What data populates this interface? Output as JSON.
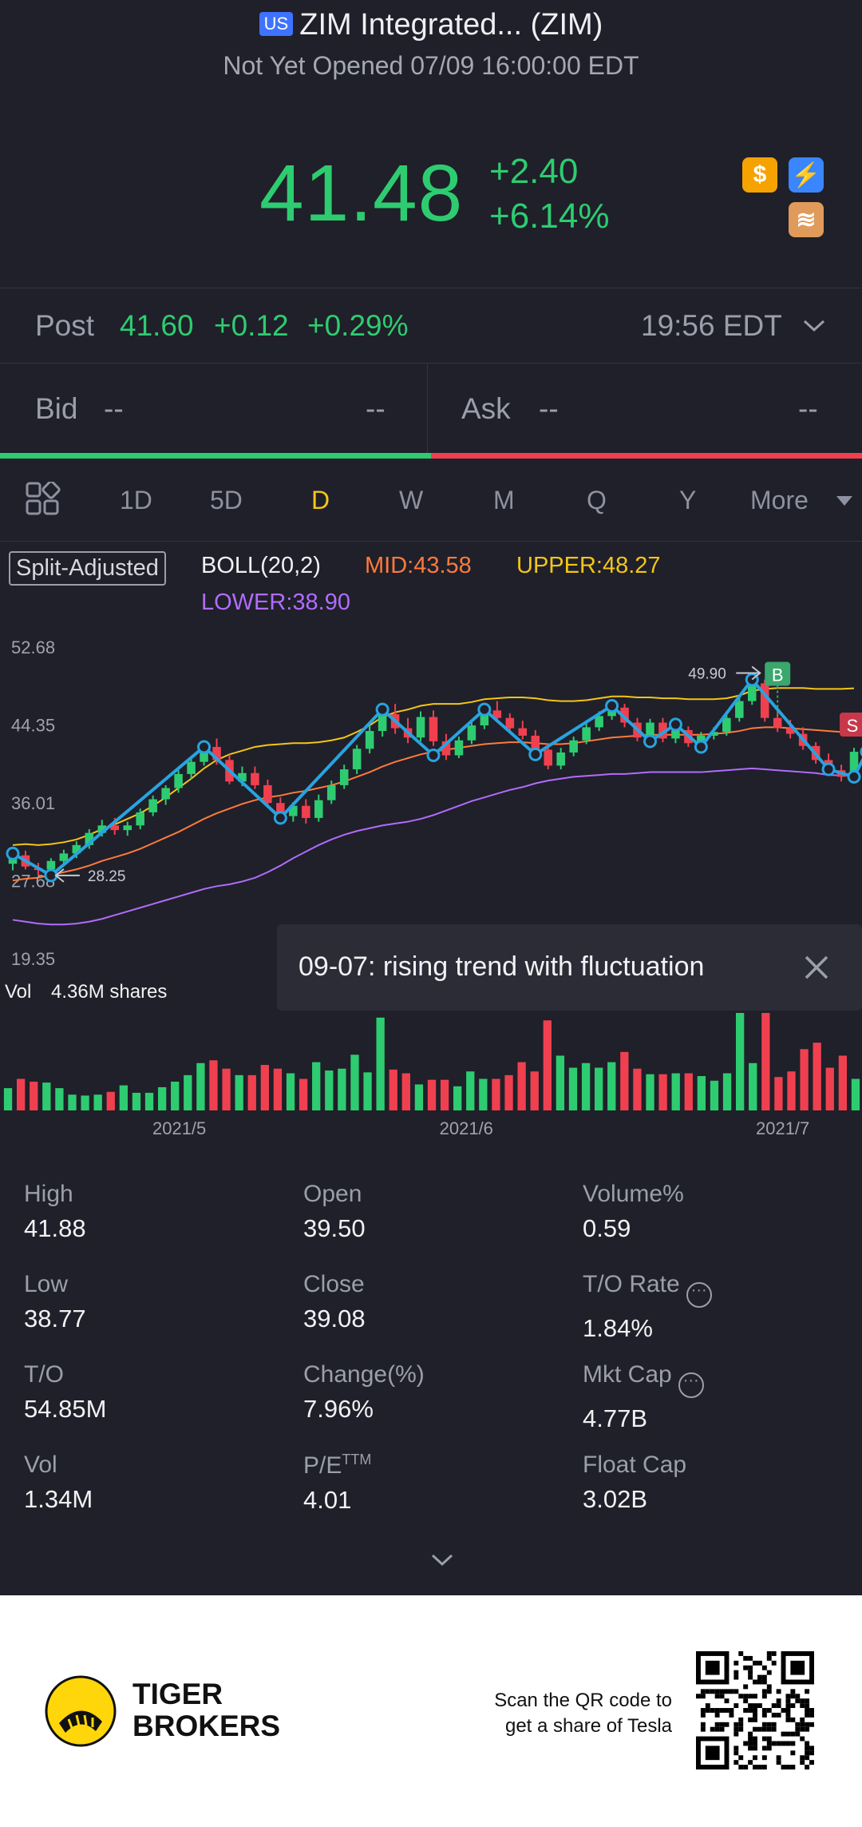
{
  "header": {
    "market_badge": "US",
    "title": "ZIM Integrated... (ZIM)",
    "status": "Not Yet Opened 07/09 16:00:00 EDT"
  },
  "quote": {
    "price": "41.48",
    "change": "+2.40",
    "change_pct": "+6.14%",
    "chips": [
      {
        "icon": "dollar-icon",
        "glyph": "$",
        "color": "#f6a300"
      },
      {
        "icon": "lightning-icon",
        "glyph": "⚡",
        "color": "#3a86ff"
      },
      {
        "icon": "stack-icon",
        "glyph": "≋",
        "color": "#e09a5a"
      }
    ]
  },
  "post": {
    "label": "Post",
    "price": "41.60",
    "change": "+0.12",
    "change_pct": "+0.29%",
    "time": "19:56 EDT"
  },
  "bid_ask": {
    "bid_label": "Bid",
    "bid_price": "--",
    "bid_size": "--",
    "ask_label": "Ask",
    "ask_price": "--",
    "ask_size": "--"
  },
  "tabs": [
    "1D",
    "5D",
    "D",
    "W",
    "M",
    "Q",
    "Y",
    "More"
  ],
  "active_tab": "D",
  "indicator": {
    "adjust_label": "Split-Adjusted",
    "name": "BOLL(20,2)",
    "mid": "MID:43.58",
    "upper": "UPPER:48.27",
    "lower": "LOWER:38.90",
    "colors": {
      "mid": "#ff7a3d",
      "upper": "#f5c518",
      "lower": "#b26bff"
    }
  },
  "annotation": {
    "high_label": "49.90",
    "low_label": "28.25",
    "trend_text": "09-07: rising trend with fluctuation",
    "buy_marker": "B",
    "sell_marker": "S"
  },
  "volume": {
    "label": "Vol",
    "value": "4.36M shares"
  },
  "chart_data": {
    "type": "candlestick",
    "y_ticks": [
      "52.68",
      "44.35",
      "36.01",
      "27.68",
      "19.35"
    ],
    "ylim": [
      19.35,
      52.68
    ],
    "x_ticks": [
      "2021/5",
      "2021/6",
      "2021/7"
    ],
    "candles": [
      [
        29.5,
        31.2,
        28.8,
        30.6
      ],
      [
        30.4,
        30.9,
        28.9,
        29.2
      ],
      [
        29.0,
        29.6,
        28.25,
        28.9
      ],
      [
        28.9,
        30.1,
        28.5,
        29.8
      ],
      [
        29.8,
        31.0,
        29.3,
        30.6
      ],
      [
        30.6,
        31.9,
        30.1,
        31.5
      ],
      [
        31.5,
        33.2,
        31.1,
        32.8
      ],
      [
        32.8,
        34.2,
        32.4,
        33.6
      ],
      [
        33.6,
        34.4,
        32.6,
        33.1
      ],
      [
        33.1,
        34.0,
        32.5,
        33.6
      ],
      [
        33.6,
        35.4,
        33.2,
        35.0
      ],
      [
        35.0,
        36.8,
        34.6,
        36.4
      ],
      [
        36.4,
        37.9,
        35.8,
        37.6
      ],
      [
        37.6,
        39.5,
        37.1,
        39.1
      ],
      [
        39.1,
        40.8,
        38.6,
        40.4
      ],
      [
        40.4,
        42.6,
        40.0,
        42.0
      ],
      [
        42.0,
        42.9,
        40.1,
        40.6
      ],
      [
        40.6,
        41.2,
        38.0,
        38.3
      ],
      [
        38.3,
        39.9,
        37.8,
        39.2
      ],
      [
        39.2,
        39.9,
        37.5,
        37.9
      ],
      [
        37.9,
        38.5,
        35.6,
        36.0
      ],
      [
        36.0,
        36.6,
        34.1,
        34.6
      ],
      [
        34.6,
        36.1,
        34.0,
        35.7
      ],
      [
        35.7,
        36.4,
        33.8,
        34.4
      ],
      [
        34.4,
        36.9,
        34.0,
        36.3
      ],
      [
        36.3,
        38.4,
        35.9,
        37.9
      ],
      [
        37.9,
        40.1,
        37.5,
        39.6
      ],
      [
        39.6,
        42.2,
        39.1,
        41.8
      ],
      [
        41.8,
        44.3,
        41.3,
        43.7
      ],
      [
        43.7,
        46.3,
        43.1,
        45.5
      ],
      [
        45.5,
        46.6,
        43.4,
        44.0
      ],
      [
        44.0,
        45.1,
        42.4,
        43.0
      ],
      [
        43.0,
        45.8,
        42.6,
        45.2
      ],
      [
        45.2,
        45.9,
        42.1,
        42.6
      ],
      [
        42.6,
        43.4,
        40.6,
        41.1
      ],
      [
        41.1,
        43.1,
        40.8,
        42.7
      ],
      [
        42.7,
        44.9,
        42.3,
        44.3
      ],
      [
        44.3,
        46.4,
        43.9,
        45.9
      ],
      [
        45.9,
        46.9,
        44.6,
        45.1
      ],
      [
        45.1,
        45.6,
        43.6,
        44.0
      ],
      [
        44.0,
        44.8,
        42.8,
        43.2
      ],
      [
        43.2,
        43.8,
        41.2,
        41.7
      ],
      [
        41.7,
        42.4,
        39.6,
        40.0
      ],
      [
        40.0,
        41.9,
        39.6,
        41.4
      ],
      [
        41.4,
        43.1,
        41.0,
        42.7
      ],
      [
        42.7,
        44.6,
        42.3,
        44.1
      ],
      [
        44.1,
        45.8,
        43.7,
        45.3
      ],
      [
        45.3,
        46.8,
        44.9,
        46.2
      ],
      [
        46.2,
        46.6,
        44.1,
        44.6
      ],
      [
        44.6,
        45.1,
        42.6,
        43.0
      ],
      [
        43.0,
        45.0,
        42.6,
        44.6
      ],
      [
        44.6,
        45.1,
        42.5,
        42.9
      ],
      [
        42.9,
        44.3,
        42.4,
        43.8
      ],
      [
        43.8,
        44.2,
        42.0,
        42.4
      ],
      [
        42.4,
        43.6,
        42.0,
        43.2
      ],
      [
        43.2,
        44.1,
        42.8,
        43.6
      ],
      [
        43.6,
        45.6,
        43.2,
        45.1
      ],
      [
        45.1,
        47.3,
        44.7,
        46.9
      ],
      [
        46.9,
        49.9,
        46.5,
        48.8
      ],
      [
        48.8,
        49.2,
        44.7,
        45.1
      ],
      [
        45.1,
        45.9,
        43.6,
        44.0
      ],
      [
        44.0,
        44.9,
        42.9,
        43.4
      ],
      [
        43.4,
        44.1,
        41.7,
        42.1
      ],
      [
        42.1,
        42.5,
        40.2,
        40.6
      ],
      [
        40.6,
        41.3,
        39.1,
        39.5
      ],
      [
        39.5,
        40.1,
        38.3,
        38.8
      ],
      [
        38.8,
        41.9,
        38.8,
        41.48
      ]
    ],
    "boll_upper": [
      31.5,
      31.6,
      31.5,
      31.6,
      31.8,
      32.1,
      32.6,
      33.2,
      33.7,
      34.3,
      34.9,
      35.7,
      36.6,
      37.6,
      38.6,
      39.7,
      40.6,
      41.2,
      41.6,
      42.0,
      42.2,
      42.3,
      42.4,
      42.4,
      42.5,
      42.7,
      43.0,
      43.6,
      44.3,
      45.2,
      45.7,
      46.0,
      46.4,
      46.6,
      46.6,
      46.6,
      46.8,
      47.1,
      47.2,
      47.3,
      47.3,
      47.2,
      47.0,
      46.9,
      46.9,
      47.0,
      47.2,
      47.4,
      47.4,
      47.3,
      47.3,
      47.2,
      47.2,
      47.1,
      47.1,
      47.1,
      47.2,
      47.5,
      48.0,
      48.2,
      48.3,
      48.3,
      48.3,
      48.2,
      48.2,
      48.2,
      48.27
    ],
    "boll_mid": [
      27.7,
      27.9,
      28.0,
      28.3,
      28.6,
      28.9,
      29.3,
      29.8,
      30.2,
      30.6,
      31.1,
      31.7,
      32.3,
      32.9,
      33.6,
      34.3,
      34.9,
      35.4,
      35.9,
      36.3,
      36.6,
      36.8,
      37.1,
      37.3,
      37.6,
      37.9,
      38.3,
      38.8,
      39.3,
      39.9,
      40.4,
      40.8,
      41.2,
      41.5,
      41.7,
      41.9,
      42.1,
      42.3,
      42.4,
      42.5,
      42.5,
      42.4,
      42.3,
      42.3,
      42.4,
      42.6,
      42.8,
      43.0,
      43.1,
      43.2,
      43.3,
      43.3,
      43.3,
      43.3,
      43.3,
      43.4,
      43.5,
      43.7,
      44.0,
      44.1,
      44.1,
      44.0,
      43.9,
      43.8,
      43.7,
      43.6,
      43.58
    ],
    "boll_lower": [
      23.5,
      23.3,
      23.1,
      23.0,
      23.0,
      23.1,
      23.3,
      23.6,
      24.0,
      24.4,
      24.8,
      25.2,
      25.6,
      26.0,
      26.4,
      26.8,
      27.1,
      27.3,
      27.6,
      28.0,
      28.6,
      29.3,
      30.1,
      30.8,
      31.5,
      32.1,
      32.6,
      33.0,
      33.3,
      33.6,
      33.8,
      34.0,
      34.3,
      34.7,
      35.2,
      35.7,
      36.2,
      36.6,
      37.0,
      37.4,
      37.7,
      38.1,
      38.4,
      38.6,
      38.8,
      38.9,
      39.0,
      39.1,
      39.1,
      39.2,
      39.3,
      39.3,
      39.3,
      39.3,
      39.3,
      39.4,
      39.5,
      39.6,
      39.7,
      39.6,
      39.5,
      39.4,
      39.3,
      39.2,
      39.0,
      38.95,
      38.9
    ],
    "trend_line": [
      [
        0,
        30.6
      ],
      [
        3,
        28.25
      ],
      [
        15,
        42.0
      ],
      [
        21,
        34.4
      ],
      [
        29,
        46.0
      ],
      [
        33,
        41.1
      ],
      [
        37,
        46.0
      ],
      [
        41,
        41.2
      ],
      [
        47,
        46.4
      ],
      [
        50,
        42.6
      ],
      [
        52,
        44.4
      ],
      [
        54,
        42.0
      ],
      [
        58,
        49.2
      ],
      [
        64,
        39.6
      ],
      [
        66,
        38.8
      ],
      [
        67,
        41.48
      ]
    ],
    "volume_ratio": [
      0.24,
      0.34,
      0.31,
      0.3,
      0.24,
      0.17,
      0.16,
      0.17,
      0.2,
      0.27,
      0.19,
      0.19,
      0.25,
      0.31,
      0.38,
      0.51,
      0.54,
      0.45,
      0.38,
      0.38,
      0.49,
      0.45,
      0.4,
      0.34,
      0.52,
      0.43,
      0.45,
      0.6,
      0.41,
      1.0,
      0.44,
      0.4,
      0.28,
      0.33,
      0.33,
      0.26,
      0.42,
      0.34,
      0.34,
      0.38,
      0.52,
      0.42,
      0.97,
      0.59,
      0.46,
      0.51,
      0.46,
      0.52,
      0.63,
      0.45,
      0.39,
      0.39,
      0.4,
      0.4,
      0.37,
      0.32,
      0.4,
      1.05,
      0.51,
      1.05,
      0.36,
      0.42,
      0.66,
      0.73,
      0.46,
      0.59,
      0.34
    ],
    "volume_max_label": "4.36M"
  },
  "stats": [
    {
      "label": "High",
      "value": "41.88"
    },
    {
      "label": "Open",
      "value": "39.50"
    },
    {
      "label": "Volume%",
      "value": "0.59"
    },
    {
      "label": "Low",
      "value": "38.77"
    },
    {
      "label": "Close",
      "value": "39.08"
    },
    {
      "label": "T/O Rate",
      "value": "1.84%",
      "info": true
    },
    {
      "label": "T/O",
      "value": "54.85M"
    },
    {
      "label": "Change(%)",
      "value": "7.96%"
    },
    {
      "label": "Mkt Cap",
      "value": "4.77B",
      "info": true
    },
    {
      "label": "Vol",
      "value": "1.34M"
    },
    {
      "label": "P/E",
      "sup": "TTM",
      "value": "4.01"
    },
    {
      "label": "Float Cap",
      "value": "3.02B"
    }
  ],
  "footer": {
    "brand_line1": "TIGER",
    "brand_line2": "BROKERS",
    "qr_line1": "Scan the QR code to",
    "qr_line2": "get a share of Tesla"
  }
}
